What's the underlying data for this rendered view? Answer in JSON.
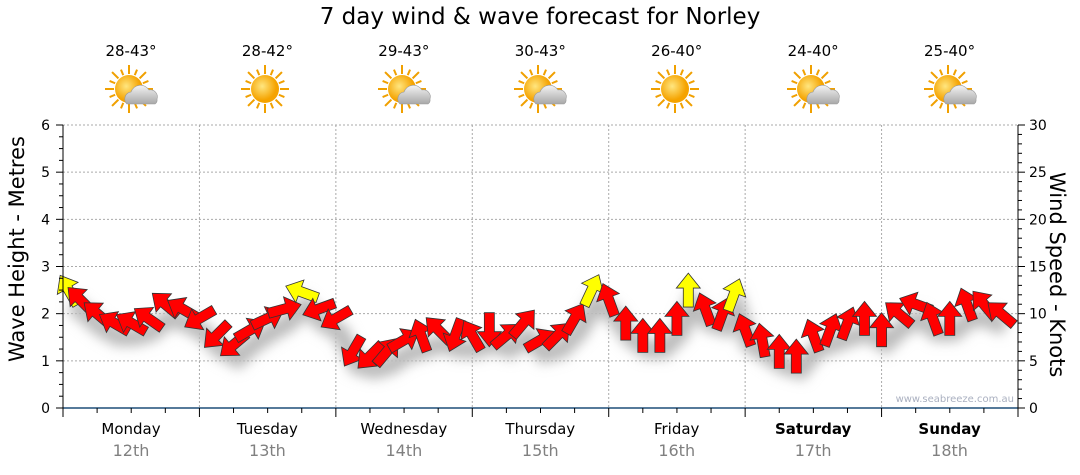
{
  "title": "7 day wind & wave forecast for Norley",
  "days": [
    {
      "name": "Monday",
      "date": "12th",
      "temp": "28-43°",
      "icon": "sun-cloud-icon",
      "bold": false
    },
    {
      "name": "Tuesday",
      "date": "13th",
      "temp": "28-42°",
      "icon": "sun-icon",
      "bold": false
    },
    {
      "name": "Wednesday",
      "date": "14th",
      "temp": "29-43°",
      "icon": "sun-cloud-icon",
      "bold": false
    },
    {
      "name": "Thursday",
      "date": "15th",
      "temp": "30-43°",
      "icon": "sun-cloud-icon",
      "bold": false
    },
    {
      "name": "Friday",
      "date": "16th",
      "temp": "26-40°",
      "icon": "sun-icon",
      "bold": false
    },
    {
      "name": "Saturday",
      "date": "17th",
      "temp": "24-40°",
      "icon": "sun-cloud-icon",
      "bold": true
    },
    {
      "name": "Sunday",
      "date": "18th",
      "temp": "25-40°",
      "icon": "sun-cloud-icon",
      "bold": true
    }
  ],
  "watermark": "www.seabreeze.com.au",
  "colors": {
    "normal": "#ff0000",
    "strong": "#ffff00",
    "axis": "#1f4e79",
    "grid": "#aaaaaa"
  },
  "chart_data": {
    "type": "scatter",
    "title": "7 day wind & wave forecast for Norley",
    "ylabel_left": "Wave Height - Metres",
    "ylabel_right": "Wind Speed - Knots",
    "ylim_left": [
      0,
      6
    ],
    "ylim_right": [
      0,
      30
    ],
    "yticks_left": [
      "0",
      "1",
      "2",
      "3",
      "4",
      "5",
      "6"
    ],
    "yticks_right": [
      "0",
      "5",
      "10",
      "15",
      "20",
      "25",
      "30"
    ],
    "grid": true,
    "x_unit": "hours from Monday 00:00",
    "series": [
      {
        "name": "Wind (knots, arrow direction deg)",
        "points": [
          {
            "t": 1,
            "knots": 12.5,
            "dir": 330,
            "strong": true
          },
          {
            "t": 3,
            "knots": 11.5,
            "dir": 315
          },
          {
            "t": 6,
            "knots": 10,
            "dir": 310
          },
          {
            "t": 9,
            "knots": 9,
            "dir": 300
          },
          {
            "t": 12,
            "knots": 9,
            "dir": 300
          },
          {
            "t": 15,
            "knots": 9.5,
            "dir": 305
          },
          {
            "t": 18,
            "knots": 11,
            "dir": 310
          },
          {
            "t": 21,
            "knots": 10.5,
            "dir": 300
          },
          {
            "t": 24,
            "knots": 9.5,
            "dir": 240
          },
          {
            "t": 27,
            "knots": 7.7,
            "dir": 225
          },
          {
            "t": 30,
            "knots": 6.7,
            "dir": 230
          },
          {
            "t": 33,
            "knots": 8.3,
            "dir": 60
          },
          {
            "t": 36,
            "knots": 9.5,
            "dir": 65
          },
          {
            "t": 39,
            "knots": 10.5,
            "dir": 75
          },
          {
            "t": 42,
            "knots": 12.3,
            "dir": 290,
            "strong": true
          },
          {
            "t": 45,
            "knots": 10.5,
            "dir": 250
          },
          {
            "t": 48,
            "knots": 9.5,
            "dir": 240
          },
          {
            "t": 51,
            "knots": 6,
            "dir": 210
          },
          {
            "t": 54,
            "knots": 5.5,
            "dir": 225
          },
          {
            "t": 57,
            "knots": 6,
            "dir": 40
          },
          {
            "t": 60,
            "knots": 7.2,
            "dir": 60
          },
          {
            "t": 63,
            "knots": 7.7,
            "dir": 340
          },
          {
            "t": 66,
            "knots": 8.3,
            "dir": 315
          },
          {
            "t": 69,
            "knots": 7.7,
            "dir": 200
          },
          {
            "t": 72,
            "knots": 7.7,
            "dir": 330
          },
          {
            "t": 75,
            "knots": 8.3,
            "dir": 180
          },
          {
            "t": 78,
            "knots": 7.7,
            "dir": 50
          },
          {
            "t": 81,
            "knots": 9,
            "dir": 40
          },
          {
            "t": 84,
            "knots": 7.2,
            "dir": 60
          },
          {
            "t": 87,
            "knots": 7.7,
            "dir": 45
          },
          {
            "t": 90,
            "knots": 9.5,
            "dir": 30
          },
          {
            "t": 93,
            "knots": 12.5,
            "dir": 25,
            "strong": true
          },
          {
            "t": 96,
            "knots": 11.5,
            "dir": 340
          },
          {
            "t": 99,
            "knots": 9,
            "dir": 0
          },
          {
            "t": 102,
            "knots": 7.7,
            "dir": 0
          },
          {
            "t": 105,
            "knots": 7.7,
            "dir": 0
          },
          {
            "t": 108,
            "knots": 9.5,
            "dir": 0
          },
          {
            "t": 110,
            "knots": 12.5,
            "dir": 0,
            "strong": true
          },
          {
            "t": 113,
            "knots": 10.5,
            "dir": 340
          },
          {
            "t": 116,
            "knots": 10,
            "dir": 20
          },
          {
            "t": 118,
            "knots": 12,
            "dir": 20,
            "strong": true
          },
          {
            "t": 120,
            "knots": 8.3,
            "dir": 340
          },
          {
            "t": 123,
            "knots": 7.2,
            "dir": 350
          },
          {
            "t": 126,
            "knots": 6,
            "dir": 0
          },
          {
            "t": 129,
            "knots": 5.5,
            "dir": 0
          },
          {
            "t": 132,
            "knots": 7.7,
            "dir": 340
          },
          {
            "t": 135,
            "knots": 8.3,
            "dir": 20
          },
          {
            "t": 138,
            "knots": 9,
            "dir": 20
          },
          {
            "t": 141,
            "knots": 9.5,
            "dir": 0
          },
          {
            "t": 144,
            "knots": 8.3,
            "dir": 0
          },
          {
            "t": 147,
            "knots": 10,
            "dir": 310
          },
          {
            "t": 150,
            "knots": 11,
            "dir": 290
          },
          {
            "t": 153,
            "knots": 9.5,
            "dir": 340
          },
          {
            "t": 156,
            "knots": 9.5,
            "dir": 0
          },
          {
            "t": 159,
            "knots": 11,
            "dir": 340
          },
          {
            "t": 162,
            "knots": 11,
            "dir": 320
          },
          {
            "t": 165,
            "knots": 10,
            "dir": 310
          }
        ]
      }
    ]
  }
}
